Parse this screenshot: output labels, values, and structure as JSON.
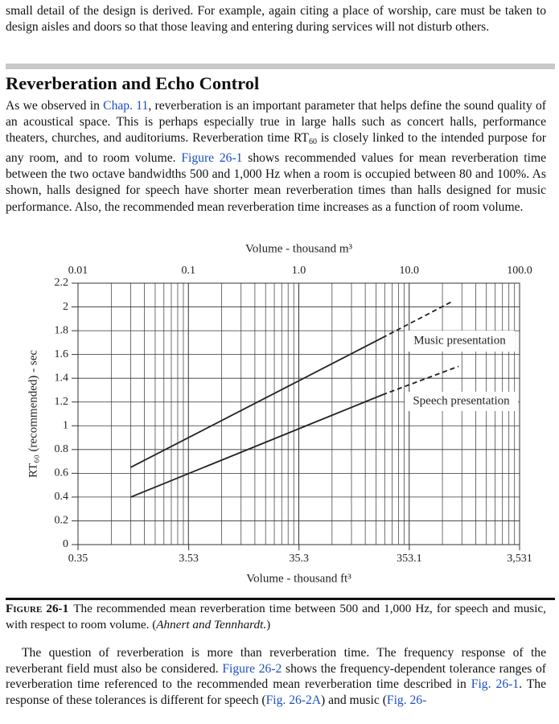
{
  "top_paragraph": {
    "runs": [
      {
        "text": "small detail of the design is derived. For example, again citing a place of worship, care must be taken to design aisles and doors so that those leaving and entering during services will not disturb others."
      }
    ]
  },
  "section": {
    "heading": "Reverberation and Echo Control",
    "paragraph": {
      "runs": [
        {
          "text": "As we observed in "
        },
        {
          "text": "Chap. 11",
          "style": "link"
        },
        {
          "text": ", reverberation is an important parameter that helps define the sound quality of an acoustical space. This is perhaps especially true in large halls such as concert halls, performance theaters, churches, and auditoriums. Reverberation time RT"
        },
        {
          "text": "60",
          "style": "sub"
        },
        {
          "text": " is closely linked to the intended purpose for any room, and to room volume. "
        },
        {
          "text": "Figure 26-1",
          "style": "link"
        },
        {
          "text": " shows recommended values for mean reverberation time between the two octave bandwidths 500 and 1,000 Hz when a room is occupied between 80 and 100%. As shown, halls designed for speech have shorter mean reverberation times than halls designed for music performance. Also, the recommended mean reverberation time increases as a function of room volume."
        }
      ]
    }
  },
  "chart_data": {
    "type": "line",
    "x_label": "Volume - thousand m³",
    "x2_label": "Volume - thousand ft³",
    "y_label": "RT₆₀ (recommended) - sec",
    "xscale": "log",
    "xlim": [
      0.01,
      100
    ],
    "xticks": [
      0.01,
      0.1,
      {
        "value": 1,
        "label": "1.0"
      },
      {
        "value": 10,
        "label": "10.0"
      },
      {
        "value": 100,
        "label": "100.0"
      }
    ],
    "x2lim": [
      0.35,
      3531
    ],
    "x2ticks": [
      0.35,
      3.53,
      35.3,
      353.1,
      {
        "value": 3531,
        "label": "3,531"
      }
    ],
    "ylim": [
      0,
      2.2
    ],
    "yticks": [
      0,
      0.2,
      0.4,
      0.6,
      0.8,
      1,
      1.2,
      1.4,
      1.6,
      1.8,
      2,
      2.2
    ],
    "grid": true,
    "series": [
      {
        "name": "Music presentation",
        "color": "#222222",
        "x": [
          0.03,
          5.7,
          25
        ],
        "values": [
          0.65,
          1.74,
          2.05
        ],
        "segment_styles": [
          "solid",
          "dashed"
        ]
      },
      {
        "name": "Speech presentation",
        "color": "#222222",
        "x": [
          0.03,
          5.7,
          28
        ],
        "values": [
          0.4,
          1.26,
          1.5
        ],
        "segment_styles": [
          "solid",
          "dashed"
        ]
      }
    ]
  },
  "caption": {
    "label": "Figure 26-1",
    "runs": [
      {
        "text": "The recommended mean reverberation time between 500 and 1,000 Hz, for speech and music, with respect to room volume. ("
      },
      {
        "text": "Ahnert and Tennhardt.",
        "style": "italic"
      },
      {
        "text": ")"
      }
    ]
  },
  "body": {
    "paragraph": {
      "runs": [
        {
          "text": "The question of reverberation is more than reverberation time. The frequency response of the reverberant field must also be considered. "
        },
        {
          "text": "Figure 26-2",
          "style": "link"
        },
        {
          "text": " shows the frequency-dependent tolerance ranges of reverberation time referenced to the recommended mean reverberation time described in "
        },
        {
          "text": "Fig. 26-1",
          "style": "link"
        },
        {
          "text": ". The response of these tolerances is different for speech ("
        },
        {
          "text": "Fig. 26-2A",
          "style": "link"
        },
        {
          "text": ") and music ("
        },
        {
          "text": "Fig. 26-",
          "style": "link"
        }
      ]
    }
  }
}
